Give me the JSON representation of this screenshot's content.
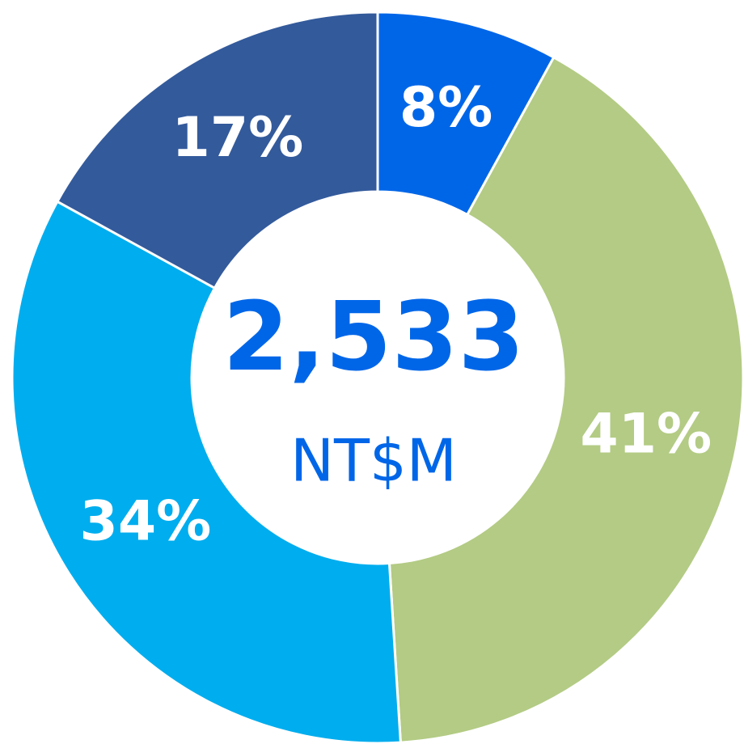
{
  "chart_data": {
    "type": "donut",
    "values": [
      8,
      41,
      34,
      17
    ],
    "value_labels": [
      "8%",
      "41%",
      "34%",
      "17%"
    ],
    "colors": [
      "#0066e8",
      "#b3cb84",
      "#00adee",
      "#335a9b"
    ],
    "center_text": "2,533",
    "center_subtext": "NT$M"
  }
}
